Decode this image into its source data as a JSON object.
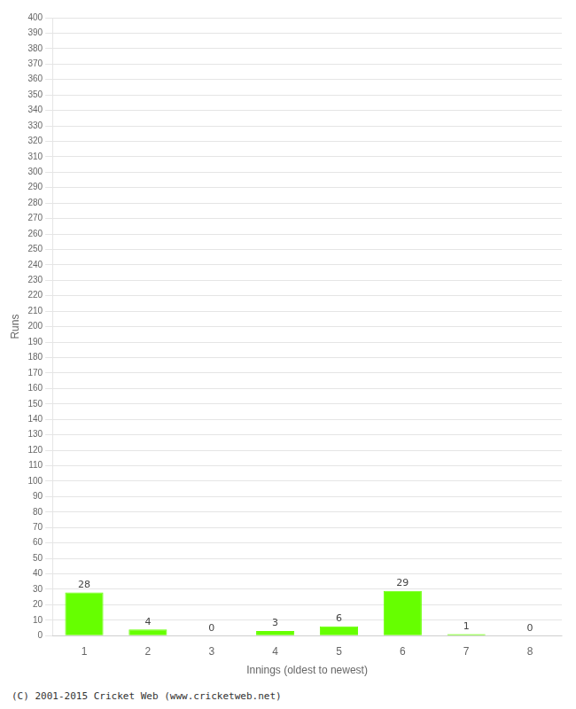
{
  "chart_data": {
    "type": "bar",
    "categories": [
      1,
      2,
      3,
      4,
      5,
      6,
      7,
      8
    ],
    "values": [
      28,
      4,
      0,
      3,
      6,
      29,
      1,
      0
    ],
    "color": "#66ff00",
    "xlabel": "Innings (oldest to newest)",
    "ylabel": "Runs",
    "ylim": [
      0,
      400
    ],
    "yticks": [
      0,
      10,
      20,
      30,
      40,
      50,
      60,
      70,
      80,
      90,
      100,
      110,
      120,
      130,
      140,
      150,
      160,
      170,
      180,
      190,
      200,
      210,
      220,
      230,
      240,
      250,
      260,
      270,
      280,
      290,
      300,
      310,
      320,
      330,
      340,
      350,
      360,
      370,
      380,
      390,
      400
    ],
    "grid": true,
    "data_labels": true,
    "footer": "(C) 2001-2015 Cricket Web (www.cricketweb.net)"
  }
}
